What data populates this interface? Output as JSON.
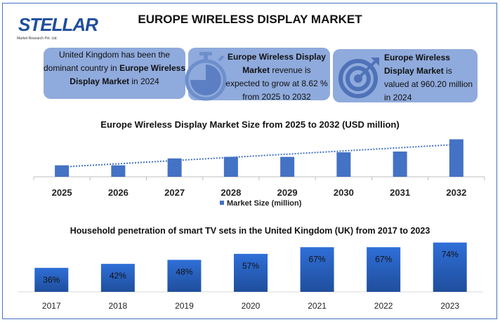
{
  "logo": {
    "name": "STELLAR",
    "sub": "Market Research Pvt. Ltd."
  },
  "header": {
    "title": "EUROPE WIRELESS DISPLAY MARKET"
  },
  "info_boxes": [
    {
      "pre": "United Kingdom has been the dominant country in ",
      "bold": "Europe Wireless Display Market",
      "post": " in 2024",
      "icon": "none"
    },
    {
      "pre": "",
      "bold": "Europe Wireless Display Market",
      "post": " revenue is expected to grow at 8.62 % from 2025 to 2032",
      "icon": "stopwatch-icon"
    },
    {
      "pre": "",
      "bold": "Europe Wireless Display Market",
      "post": " is valued at 960.20 million in 2024",
      "icon": "target-icon"
    }
  ],
  "colors": {
    "bar": "#4472c4",
    "box": "#8faadc",
    "trend": "#4472c4",
    "bar2_top": "#2f6fd8",
    "bar2_bottom": "#1f4e9c"
  },
  "chart_data": [
    {
      "type": "bar",
      "title": "Europe Wireless Display Market Size from 2025 to 2032 (USD million)",
      "categories": [
        "2025",
        "2026",
        "2027",
        "2028",
        "2029",
        "2030",
        "2031",
        "2032"
      ],
      "series": [
        {
          "name": "Market Size (million)",
          "values": [
            15,
            15,
            24,
            26,
            26,
            32,
            33,
            49
          ]
        }
      ],
      "trendline": "linear dotted",
      "legend": "bottom",
      "grid": false,
      "ylim": [
        0,
        55
      ]
    },
    {
      "type": "bar",
      "title": "Household penetration of smart TV sets in the United Kingdom (UK) from 2017 to 2023",
      "categories": [
        "2017",
        "2018",
        "2019",
        "2020",
        "2021",
        "2022",
        "2023"
      ],
      "values": [
        36,
        42,
        48,
        57,
        67,
        67,
        74
      ],
      "data_labels": [
        "36%",
        "42%",
        "48%",
        "57%",
        "67%",
        "67%",
        "74%"
      ],
      "grid": false,
      "ylim": [
        0,
        80
      ]
    }
  ]
}
